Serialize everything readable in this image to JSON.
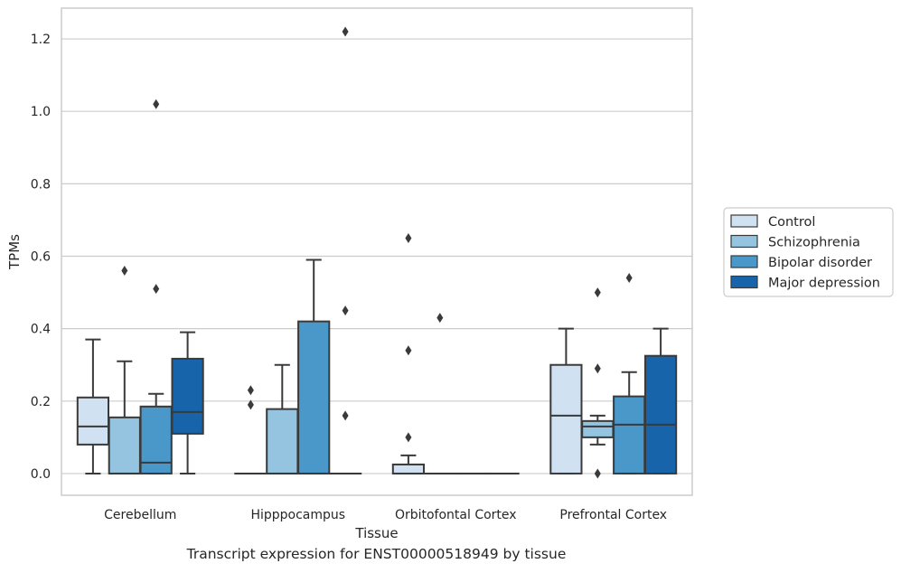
{
  "chart_data": {
    "type": "box",
    "xlabel": "Tissue",
    "ylabel": "TPMs",
    "ylim": [
      -0.06,
      1.285
    ],
    "yticks": [
      0.0,
      0.2,
      0.4,
      0.6,
      0.8,
      1.0,
      1.2
    ],
    "ytick_labels": [
      "0.0",
      "0.2",
      "0.4",
      "0.6",
      "0.8",
      "1.0",
      "1.2"
    ],
    "grid": "horizontal",
    "legend_position": "right",
    "categories": [
      "Cerebellum",
      "Hipppocampus",
      "Orbitofontal Cortex",
      "Prefrontal Cortex"
    ],
    "series": [
      {
        "name": "Control",
        "color": "#d0e1f2",
        "boxes": [
          {
            "whislo": 0.0,
            "q1": 0.08,
            "med": 0.13,
            "q3": 0.21,
            "whishi": 0.37,
            "fliers": []
          },
          {
            "whislo": 0.0,
            "q1": 0.0,
            "med": 0.0,
            "q3": 0.0,
            "whishi": 0.0,
            "fliers": [
              0.19,
              0.23
            ]
          },
          {
            "whislo": 0.0,
            "q1": 0.0,
            "med": 0.0,
            "q3": 0.025,
            "whishi": 0.05,
            "fliers": [
              0.1,
              0.34,
              0.65
            ]
          },
          {
            "whislo": 0.0,
            "q1": 0.0,
            "med": 0.16,
            "q3": 0.3,
            "whishi": 0.4,
            "fliers": []
          }
        ]
      },
      {
        "name": "Schizophrenia",
        "color": "#94c4df",
        "boxes": [
          {
            "whislo": 0.0,
            "q1": 0.0,
            "med": 0.0,
            "q3": 0.155,
            "whishi": 0.31,
            "fliers": [
              0.56
            ]
          },
          {
            "whislo": 0.0,
            "q1": 0.0,
            "med": 0.0,
            "q3": 0.178,
            "whishi": 0.3,
            "fliers": []
          },
          {
            "whislo": 0.0,
            "q1": 0.0,
            "med": 0.0,
            "q3": 0.0,
            "whishi": 0.0,
            "fliers": [
              0.43
            ]
          },
          {
            "whislo": 0.08,
            "q1": 0.1,
            "med": 0.13,
            "q3": 0.145,
            "whishi": 0.16,
            "fliers": [
              0.0,
              0.29,
              0.5
            ]
          }
        ]
      },
      {
        "name": "Bipolar disorder",
        "color": "#4a98c9",
        "boxes": [
          {
            "whislo": 0.0,
            "q1": 0.0,
            "med": 0.03,
            "q3": 0.185,
            "whishi": 0.22,
            "fliers": [
              0.51,
              1.02
            ]
          },
          {
            "whislo": 0.0,
            "q1": 0.0,
            "med": 0.0,
            "q3": 0.42,
            "whishi": 0.59,
            "fliers": []
          },
          {
            "whislo": 0.0,
            "q1": 0.0,
            "med": 0.0,
            "q3": 0.0,
            "whishi": 0.0,
            "fliers": []
          },
          {
            "whislo": 0.0,
            "q1": 0.0,
            "med": 0.135,
            "q3": 0.213,
            "whishi": 0.28,
            "fliers": [
              0.54
            ]
          }
        ]
      },
      {
        "name": "Major depression",
        "color": "#1764ab",
        "boxes": [
          {
            "whislo": 0.0,
            "q1": 0.11,
            "med": 0.17,
            "q3": 0.317,
            "whishi": 0.39,
            "fliers": []
          },
          {
            "whislo": 0.0,
            "q1": 0.0,
            "med": 0.0,
            "q3": 0.0,
            "whishi": 0.0,
            "fliers": [
              0.16,
              0.45,
              1.22
            ]
          },
          {
            "whislo": 0.0,
            "q1": 0.0,
            "med": 0.0,
            "q3": 0.0,
            "whishi": 0.0,
            "fliers": []
          },
          {
            "whislo": 0.0,
            "q1": 0.0,
            "med": 0.135,
            "q3": 0.325,
            "whishi": 0.4,
            "fliers": []
          }
        ]
      }
    ]
  },
  "caption": "Transcript expression for ENST00000518949 by tissue"
}
